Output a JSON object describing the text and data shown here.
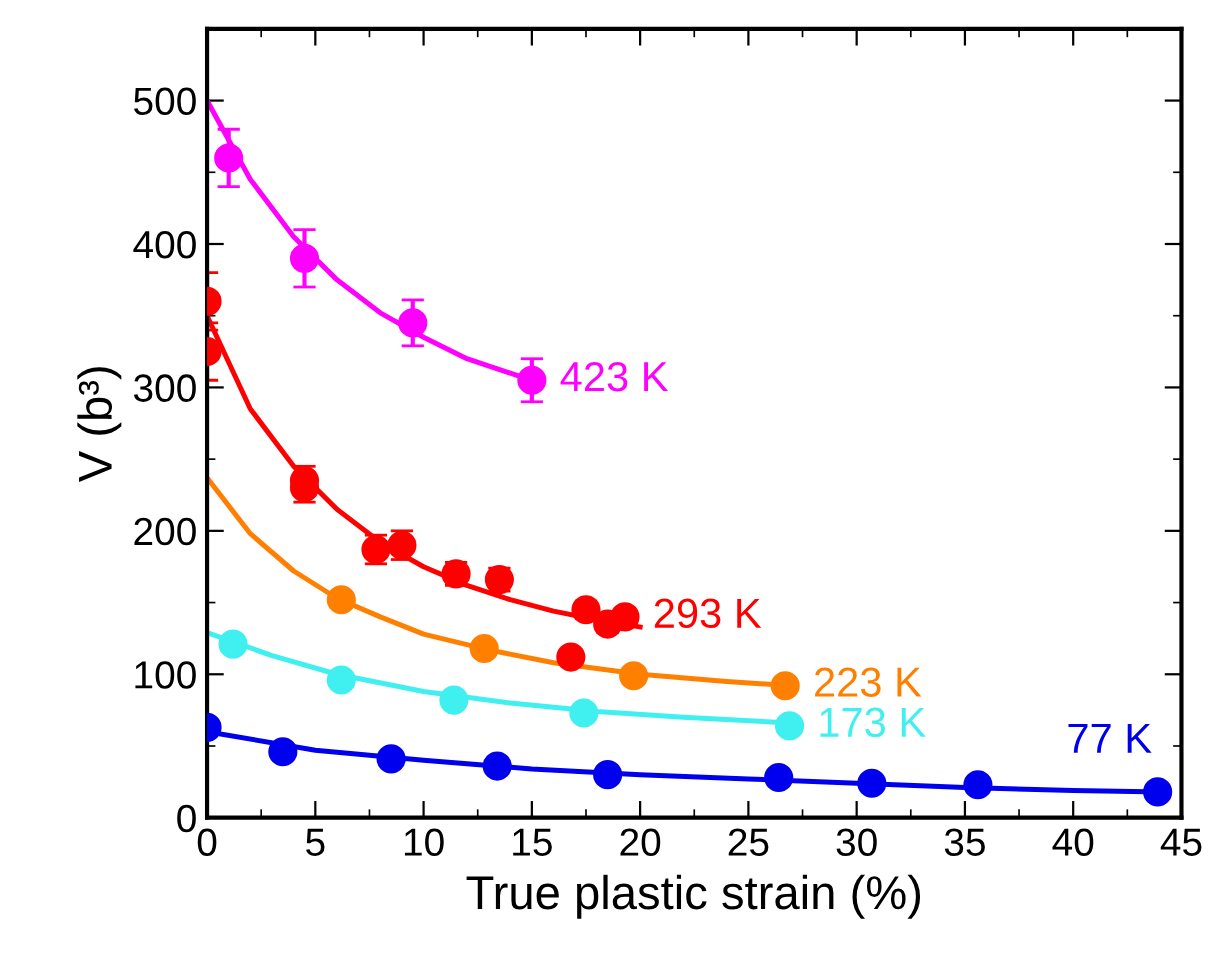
{
  "chart_data": {
    "type": "scatter",
    "xlabel": "True plastic strain (%)",
    "ylabel": "V (b³)",
    "xlim": [
      0,
      45
    ],
    "ylim": [
      0,
      550
    ],
    "xticks": [
      0,
      5,
      10,
      15,
      20,
      25,
      30,
      35,
      40,
      45
    ],
    "yticks": [
      0,
      100,
      200,
      300,
      400,
      500
    ],
    "grid": false,
    "legend": false,
    "marker": "circle",
    "series": [
      {
        "name": "423 K",
        "color": "#ff00ff",
        "x": [
          1,
          4.5,
          9.5,
          15
        ],
        "values": [
          460,
          390,
          345,
          305
        ],
        "errors": [
          20,
          20,
          16,
          15
        ]
      },
      {
        "type": "line",
        "marker": "none",
        "color": "#ff00ff",
        "x": [
          0,
          2,
          4,
          6,
          8,
          10,
          12,
          15
        ],
        "values": [
          500,
          445,
          405,
          375,
          352,
          335,
          320,
          305
        ]
      },
      {
        "name": "293 K",
        "color": "#ff0000",
        "x": [
          0,
          0,
          4.5,
          4.5,
          7.8,
          9,
          11.5,
          13.5,
          16.8,
          17.5,
          18.5,
          19.3
        ],
        "values": [
          360,
          325,
          235,
          230,
          187,
          190,
          170,
          166,
          112,
          145,
          135,
          140
        ],
        "errors": [
          20,
          20,
          10,
          10,
          10,
          10,
          8,
          8,
          null,
          6,
          6,
          6
        ]
      },
      {
        "type": "line",
        "marker": "none",
        "color": "#ff0000",
        "x": [
          0,
          2,
          4,
          6,
          8,
          10,
          12,
          14,
          16,
          18,
          20
        ],
        "values": [
          350,
          285,
          245,
          215,
          192,
          175,
          162,
          152,
          144,
          138,
          133
        ]
      },
      {
        "name": "223 K",
        "color": "#ff8000",
        "x": [
          6.2,
          12.8,
          19.7,
          26.7
        ],
        "values": [
          152,
          118,
          99,
          92
        ]
      },
      {
        "type": "line",
        "marker": "none",
        "color": "#ff8000",
        "x": [
          0,
          2,
          4,
          6,
          8,
          10,
          13,
          16,
          20,
          24,
          27
        ],
        "values": [
          237,
          198,
          172,
          153,
          140,
          128,
          117,
          108,
          100,
          95,
          92
        ]
      },
      {
        "name": "173 K",
        "color": "#40f0f0",
        "x": [
          1.2,
          6.2,
          11.4,
          17.4,
          26.9
        ],
        "values": [
          121,
          96,
          82,
          73,
          64
        ]
      },
      {
        "type": "line",
        "marker": "none",
        "color": "#40f0f0",
        "x": [
          0,
          3,
          6,
          10,
          14,
          18,
          22,
          27
        ],
        "values": [
          129,
          113,
          100,
          88,
          80,
          74,
          70,
          66
        ]
      },
      {
        "name": "77 K",
        "color": "#0000ee",
        "x": [
          0,
          3.5,
          8.5,
          13.4,
          18.5,
          26.4,
          30.7,
          35.6,
          43.9
        ],
        "values": [
          63,
          46,
          41,
          36,
          30,
          28,
          24,
          23,
          18
        ]
      },
      {
        "type": "line",
        "marker": "none",
        "color": "#0000ee",
        "x": [
          0,
          5,
          10,
          15,
          20,
          25,
          30,
          35,
          40,
          44
        ],
        "values": [
          60,
          47,
          40,
          34,
          30,
          27,
          24,
          21,
          19,
          18
        ]
      }
    ]
  }
}
